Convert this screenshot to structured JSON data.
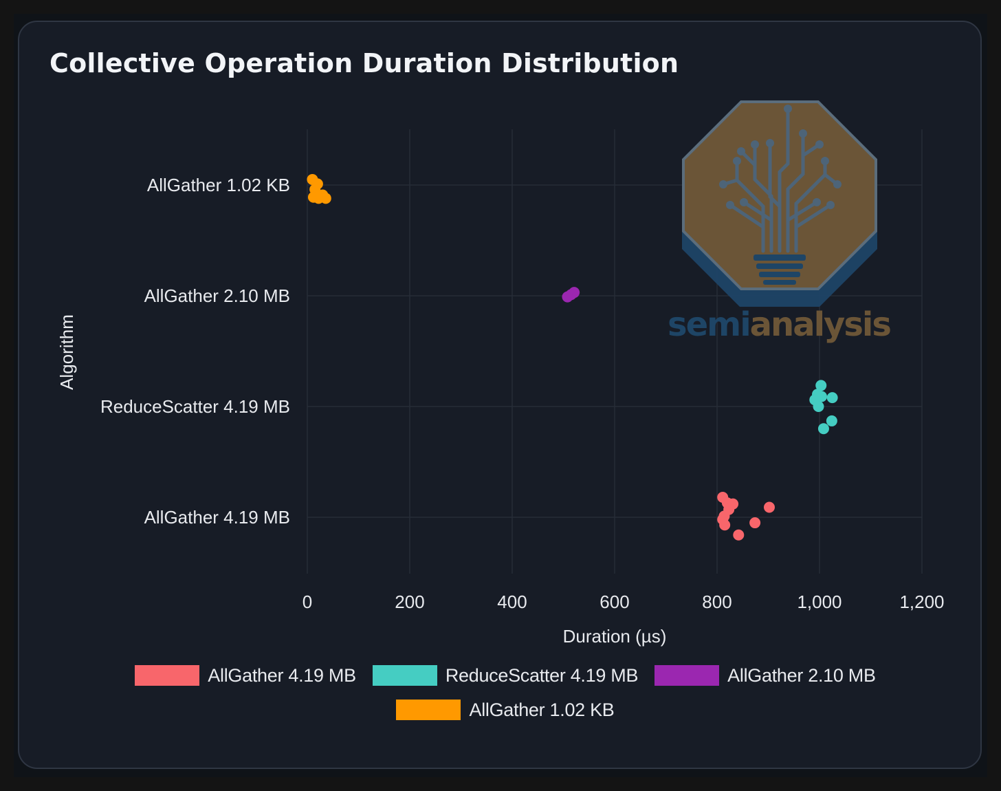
{
  "colors": {
    "page_bg": "#141414",
    "card_bg": "#171c26",
    "grid": "#262c37",
    "text": "#e8eaee",
    "allgather_419mb": "#f8666b",
    "reducescatter_419mb": "#45cdc2",
    "allgather_210mb": "#9b27b0",
    "allgather_102kb": "#ff9900",
    "logo_brown": "#6b5537",
    "logo_blue": "#1e4566"
  },
  "watermark": {
    "brand_left": "semi",
    "brand_right": "analysis",
    "icon": "circuit-tree-lightbulb-icon"
  },
  "chart_data": {
    "type": "scatter",
    "title": "Collective Operation Duration Distribution",
    "xlabel": "Duration (µs)",
    "ylabel": "Algorithm",
    "xlim": [
      0,
      1200
    ],
    "xticks": [
      0,
      200,
      400,
      600,
      800,
      1000,
      1200
    ],
    "xtick_labels": [
      "0",
      "200",
      "400",
      "600",
      "800",
      "1,000",
      "1,200"
    ],
    "grid": true,
    "legend_position": "bottom",
    "categories": [
      "AllGather 1.02 KB",
      "AllGather 2.10 MB",
      "ReduceScatter 4.19 MB",
      "AllGather 4.19 MB"
    ],
    "series": [
      {
        "name": "AllGather 4.19 MB",
        "color_key": "allgather_419mb",
        "points": [
          {
            "x": 811,
            "jitter": -0.18
          },
          {
            "x": 820,
            "jitter": -0.13
          },
          {
            "x": 831,
            "jitter": -0.12
          },
          {
            "x": 823,
            "jitter": -0.07
          },
          {
            "x": 902,
            "jitter": -0.09
          },
          {
            "x": 814,
            "jitter": -0.01
          },
          {
            "x": 811,
            "jitter": 0.02
          },
          {
            "x": 874,
            "jitter": 0.05
          },
          {
            "x": 815,
            "jitter": 0.07
          },
          {
            "x": 842,
            "jitter": 0.16
          }
        ]
      },
      {
        "name": "ReduceScatter 4.19 MB",
        "color_key": "reducescatter_419mb",
        "points": [
          {
            "x": 1003,
            "jitter": -0.19
          },
          {
            "x": 996,
            "jitter": -0.11
          },
          {
            "x": 1004,
            "jitter": -0.09
          },
          {
            "x": 1025,
            "jitter": -0.08
          },
          {
            "x": 991,
            "jitter": -0.06
          },
          {
            "x": 998,
            "jitter": 0.0
          },
          {
            "x": 1024,
            "jitter": 0.13
          },
          {
            "x": 1008,
            "jitter": 0.2
          }
        ]
      },
      {
        "name": "AllGather 2.10 MB",
        "color_key": "allgather_210mb",
        "points": [
          {
            "x": 521,
            "jitter": -0.03
          },
          {
            "x": 515,
            "jitter": -0.01
          },
          {
            "x": 508,
            "jitter": 0.01
          }
        ]
      },
      {
        "name": "AllGather 1.02 KB",
        "color_key": "allgather_102kb",
        "points": [
          {
            "x": 10,
            "jitter": -0.05
          },
          {
            "x": 20,
            "jitter": -0.01
          },
          {
            "x": 15,
            "jitter": 0.04
          },
          {
            "x": 30,
            "jitter": 0.09
          },
          {
            "x": 12,
            "jitter": 0.11
          },
          {
            "x": 22,
            "jitter": 0.12
          },
          {
            "x": 36,
            "jitter": 0.12
          }
        ]
      }
    ]
  }
}
